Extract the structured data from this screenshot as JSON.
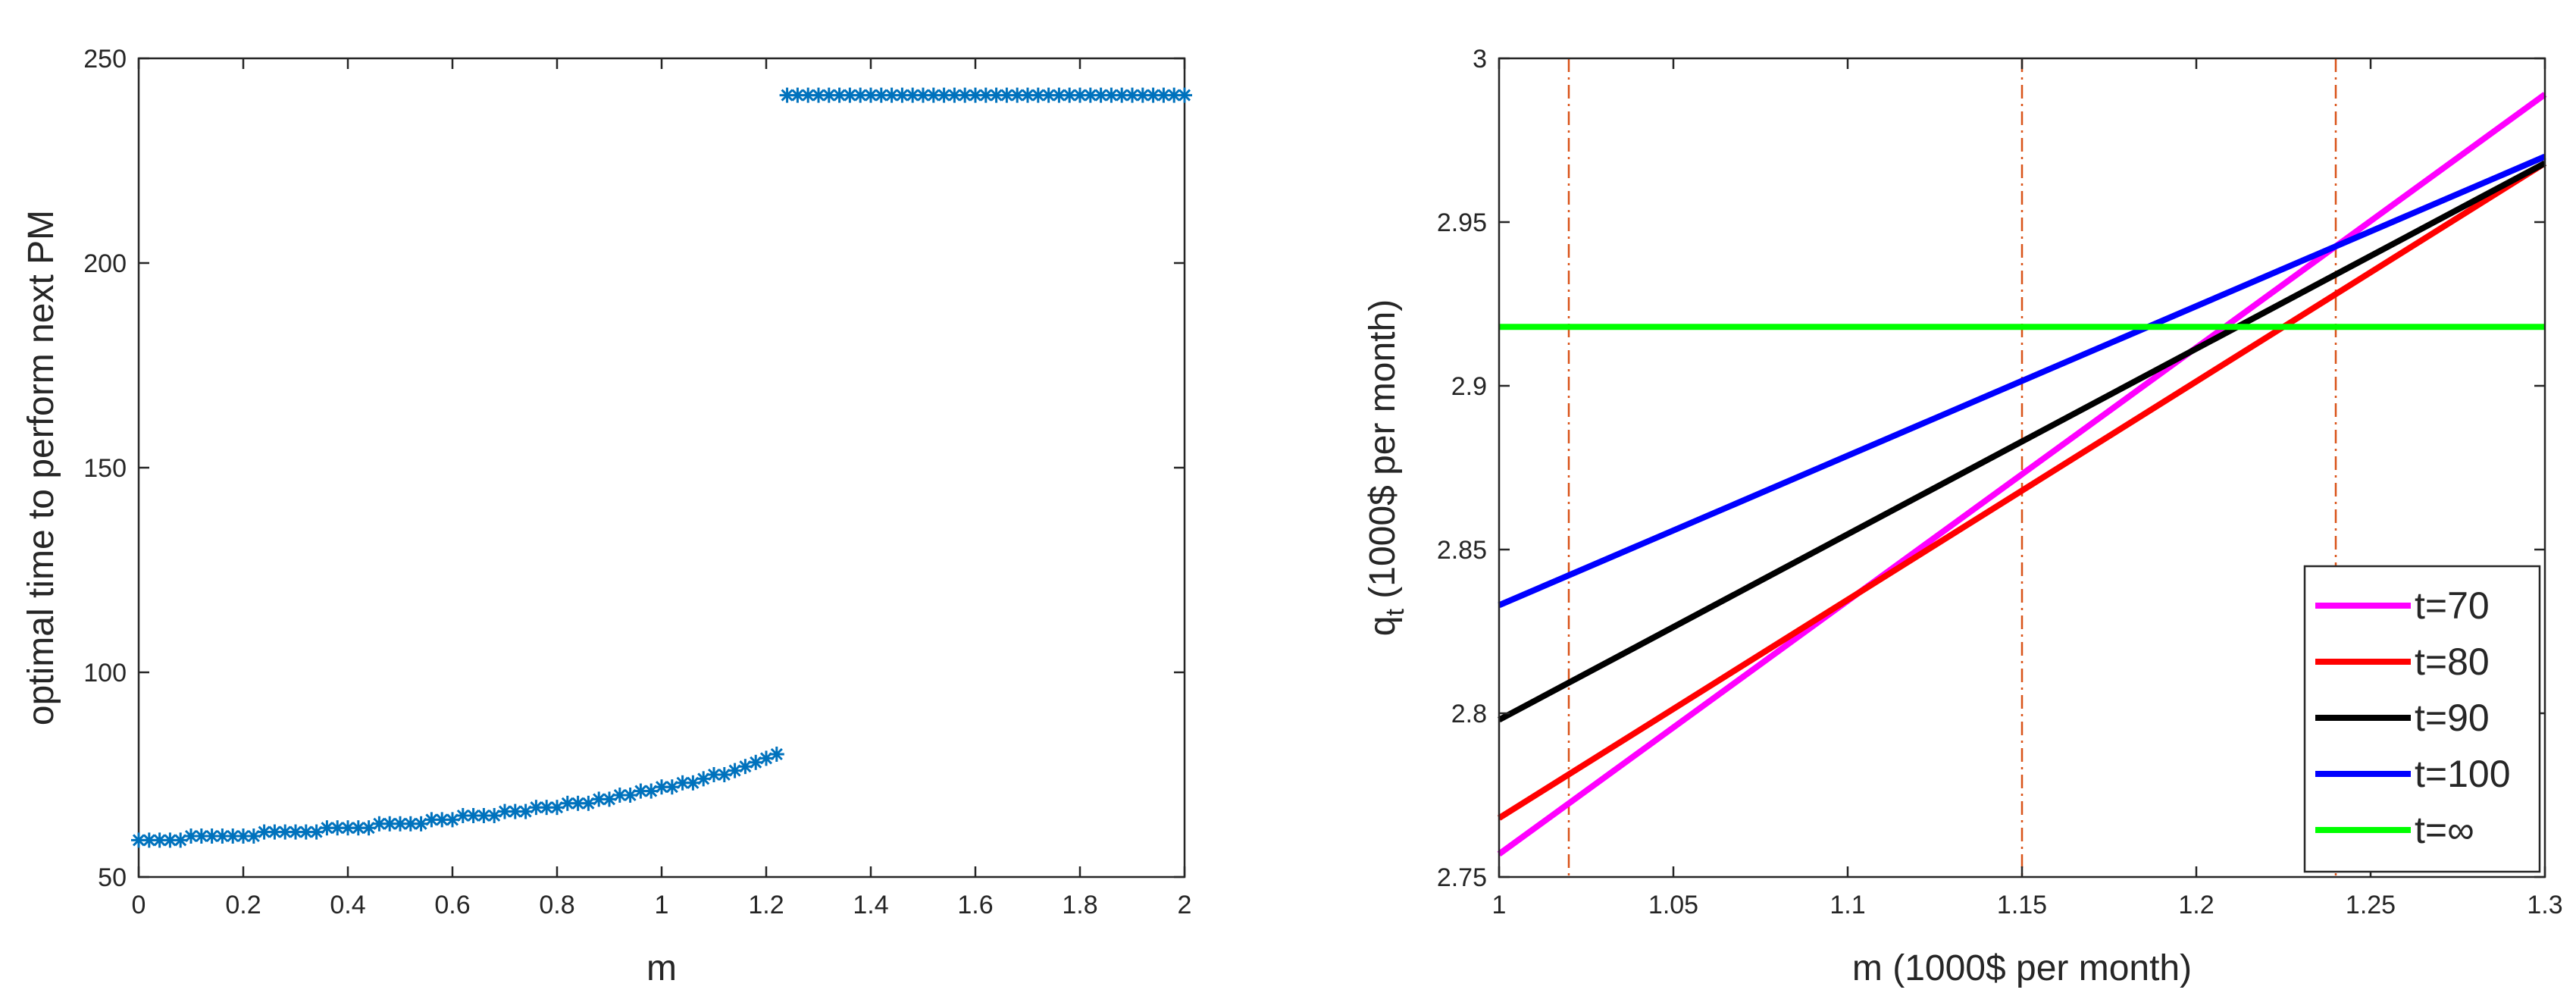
{
  "colors": {
    "marker": "#0072BD",
    "vline": "#D95319",
    "t70": "#FF00FF",
    "t80": "#FF0000",
    "t90": "#000000",
    "t100": "#0000FF",
    "tinf": "#00FF00"
  },
  "chart_data": [
    {
      "type": "scatter",
      "marker": "asterisk",
      "xlabel": "m",
      "ylabel": "optimal time to perform next PM",
      "xlim": [
        0,
        2
      ],
      "ylim": [
        50,
        250
      ],
      "xticks": [
        "0",
        "0.2",
        "0.4",
        "0.6",
        "0.8",
        "1",
        "1.2",
        "1.4",
        "1.6",
        "1.8",
        "2"
      ],
      "yticks": [
        "50",
        "100",
        "150",
        "200",
        "250"
      ],
      "grid": false,
      "series": [
        {
          "x": [
            0,
            0.02,
            0.04,
            0.06,
            0.08,
            0.1,
            0.12,
            0.14,
            0.16,
            0.18,
            0.2,
            0.22,
            0.24,
            0.26,
            0.28,
            0.3,
            0.32,
            0.34,
            0.36,
            0.38,
            0.4,
            0.42,
            0.44,
            0.46,
            0.48,
            0.5,
            0.52,
            0.54,
            0.56,
            0.58,
            0.6,
            0.62,
            0.64,
            0.66,
            0.68,
            0.7,
            0.72,
            0.74,
            0.76,
            0.78,
            0.8,
            0.82,
            0.84,
            0.86,
            0.88,
            0.9,
            0.92,
            0.94,
            0.96,
            0.98,
            1.0,
            1.02,
            1.04,
            1.06,
            1.08,
            1.1,
            1.12,
            1.14,
            1.16,
            1.18,
            1.2,
            1.22,
            1.24,
            1.26,
            1.28,
            1.3,
            1.32,
            1.34,
            1.36,
            1.38,
            1.4,
            1.42,
            1.44,
            1.46,
            1.48,
            1.5,
            1.52,
            1.54,
            1.56,
            1.58,
            1.6,
            1.62,
            1.64,
            1.66,
            1.68,
            1.7,
            1.72,
            1.74,
            1.76,
            1.78,
            1.8,
            1.82,
            1.84,
            1.86,
            1.88,
            1.9,
            1.92,
            1.94,
            1.96,
            1.98,
            2.0
          ],
          "y": [
            59,
            59,
            59,
            59,
            59,
            60,
            60,
            60,
            60,
            60,
            60,
            60,
            61,
            61,
            61,
            61,
            61,
            61,
            62,
            62,
            62,
            62,
            62,
            63,
            63,
            63,
            63,
            63,
            64,
            64,
            64,
            65,
            65,
            65,
            65,
            66,
            66,
            66,
            67,
            67,
            67,
            68,
            68,
            68,
            69,
            69,
            70,
            70,
            71,
            71,
            72,
            72,
            73,
            73,
            74,
            75,
            75,
            76,
            77,
            78,
            79,
            80,
            241,
            241,
            241,
            241,
            241,
            241,
            241,
            241,
            241,
            241,
            241,
            241,
            241,
            241,
            241,
            241,
            241,
            241,
            241,
            241,
            241,
            241,
            241,
            241,
            241,
            241,
            241,
            241,
            241,
            241,
            241,
            241,
            241,
            241,
            241,
            241,
            241,
            241,
            241
          ]
        }
      ]
    },
    {
      "type": "line",
      "xlabel": "m (1000$ per month)",
      "ylabel_main": "q",
      "ylabel_sub": "t",
      "ylabel_rest": " (1000$ per month)",
      "xlim": [
        1,
        1.3
      ],
      "ylim": [
        2.75,
        3
      ],
      "xticks": [
        "1",
        "1.05",
        "1.1",
        "1.15",
        "1.2",
        "1.25",
        "1.3"
      ],
      "yticks": [
        "2.75",
        "2.8",
        "2.85",
        "2.9",
        "2.95",
        "3"
      ],
      "grid": false,
      "legend_position": "bottom-right",
      "vlines": [
        1.02,
        1.15,
        1.24
      ],
      "series": [
        {
          "name": "t=70",
          "x": [
            1,
            1.3
          ],
          "y": [
            2.757,
            2.989
          ],
          "color": "#FF00FF"
        },
        {
          "name": "t=80",
          "x": [
            1,
            1.3
          ],
          "y": [
            2.768,
            2.968
          ],
          "color": "#FF0000"
        },
        {
          "name": "t=90",
          "x": [
            1,
            1.3
          ],
          "y": [
            2.798,
            2.968
          ],
          "color": "#000000"
        },
        {
          "name": "t=100",
          "x": [
            1,
            1.3
          ],
          "y": [
            2.833,
            2.97
          ],
          "color": "#0000FF"
        },
        {
          "name": "t=∞",
          "x": [
            1,
            1.3
          ],
          "y": [
            2.918,
            2.918
          ],
          "color": "#00FF00"
        }
      ]
    }
  ]
}
